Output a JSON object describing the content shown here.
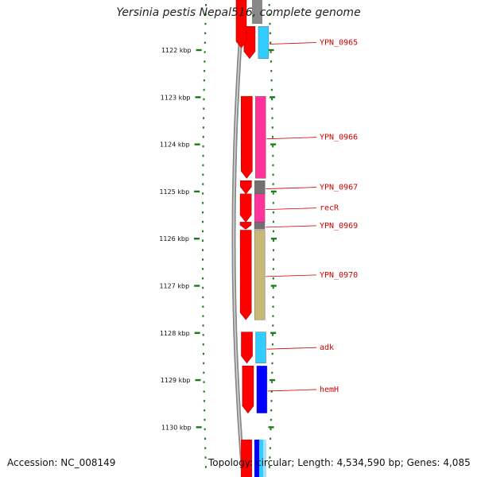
{
  "title": "Yersinia pestis Nepal516, complete genome",
  "footer": {
    "accession_label": "Accession:",
    "accession": "NC_008149",
    "topology_label": "Topology:",
    "topology": "circular",
    "length_label": "Length:",
    "length": "4,534,590 bp",
    "genes_label": "Genes:",
    "genes": "4,085"
  },
  "scale": {
    "unit": "kbp",
    "ticks": [
      {
        "kbp": 1122,
        "label": "1122 kbp"
      },
      {
        "kbp": 1123,
        "label": "1123 kbp"
      },
      {
        "kbp": 1124,
        "label": "1124 kbp"
      },
      {
        "kbp": 1125,
        "label": "1125 kbp"
      },
      {
        "kbp": 1126,
        "label": "1126 kbp"
      },
      {
        "kbp": 1127,
        "label": "1127 kbp"
      },
      {
        "kbp": 1128,
        "label": "1128 kbp"
      },
      {
        "kbp": 1129,
        "label": "1129 kbp"
      },
      {
        "kbp": 1130,
        "label": "1130 kbp"
      }
    ]
  },
  "colors": {
    "cds_strand": "#ff0000",
    "backbone": "#888888",
    "ticks": "#1a7a1a",
    "label_text": "#cc0000"
  },
  "genes": [
    {
      "name": "YPN_0965",
      "label": "YPN_0965",
      "start_kbp": 1121.5,
      "end_kbp": 1122.18,
      "color": "#33ccff"
    },
    {
      "name": "YPN_0966",
      "label": "YPN_0966",
      "start_kbp": 1122.98,
      "end_kbp": 1124.72,
      "color": "#ff3399"
    },
    {
      "name": "YPN_0967",
      "label": "YPN_0967",
      "start_kbp": 1124.77,
      "end_kbp": 1125.05,
      "color": "#707070"
    },
    {
      "name": "recR",
      "label": "recR",
      "start_kbp": 1125.05,
      "end_kbp": 1125.65,
      "color": "#ff3399"
    },
    {
      "name": "YPN_0969",
      "label": "YPN_0969",
      "start_kbp": 1125.65,
      "end_kbp": 1125.8,
      "color": "#707070"
    },
    {
      "name": "YPN_0970",
      "label": "YPN_0970",
      "start_kbp": 1125.82,
      "end_kbp": 1127.72,
      "color": "#c8b878"
    },
    {
      "name": "adk",
      "label": "adk",
      "start_kbp": 1127.98,
      "end_kbp": 1128.64,
      "color": "#33ccff"
    },
    {
      "name": "hemH",
      "label": "hemH",
      "start_kbp": 1128.7,
      "end_kbp": 1129.7,
      "color": "#0000ff"
    }
  ]
}
